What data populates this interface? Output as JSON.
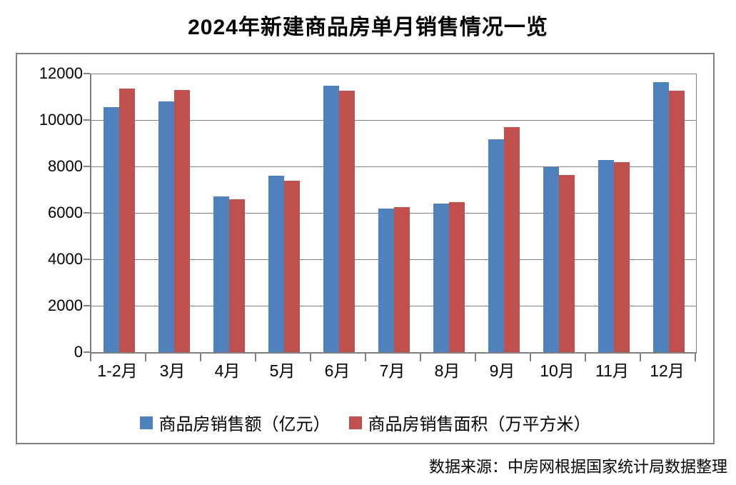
{
  "title": "2024年新建商品房单月销售情况一览",
  "source_note": "数据来源：中房网根据国家统计局数据整理",
  "colors": {
    "series_1": "#4F81BD",
    "series_2": "#C0504D",
    "axis": "#808080",
    "grid": "#808080",
    "text": "#000000",
    "background": "#FFFFFF"
  },
  "chart_data": {
    "type": "bar",
    "title": "2024年新建商品房单月销售情况一览",
    "categories": [
      "1-2月",
      "3月",
      "4月",
      "5月",
      "6月",
      "7月",
      "8月",
      "9月",
      "10月",
      "11月",
      "12月"
    ],
    "series": [
      {
        "name": "商品房销售额（亿元）",
        "color": "#4F81BD",
        "values": [
          10566,
          10789,
          6712,
          7598,
          11468,
          6197,
          6393,
          9157,
          7975,
          8270,
          11625
        ]
      },
      {
        "name": "商品房销售面积（万平方米）",
        "color": "#C0504D",
        "values": [
          11369,
          11299,
          6584,
          7390,
          11274,
          6233,
          6453,
          9682,
          7646,
          8188,
          11267
        ]
      }
    ],
    "xlabel": "",
    "ylabel": "",
    "ylim": [
      0,
      12000
    ],
    "ytick_step": 2000,
    "grid": "horizontal",
    "legend_position": "bottom"
  }
}
